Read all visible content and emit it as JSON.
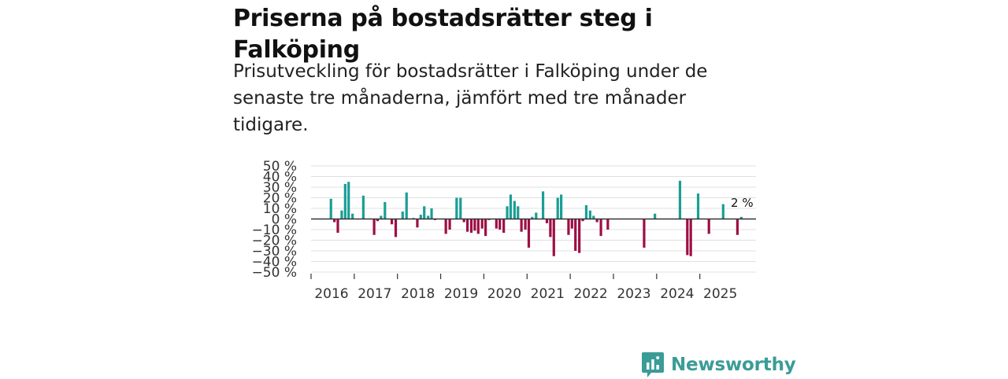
{
  "title": "Priserna på bostadsrätter steg i Falköping",
  "subtitle": "Prisutveckling för bostadsrätter i Falköping under de senaste tre månaderna, jämfört med tre månader tidigare.",
  "brand": {
    "name": "Newsworthy",
    "color": "#3a9c96"
  },
  "colors": {
    "positive": "#1a9e96",
    "negative": "#9e0e45",
    "grid": "#e0e0e0",
    "zero_line": "#333333"
  },
  "chart_data": {
    "type": "bar",
    "title": "Priserna på bostadsrätter steg i Falköping",
    "xlabel": "",
    "ylabel": "",
    "ylim": [
      -50,
      50
    ],
    "y_ticks": [
      50,
      40,
      30,
      20,
      10,
      0,
      -10,
      -20,
      -30,
      -40,
      -50
    ],
    "y_tick_labels": [
      "50 %",
      "40 %",
      "30 %",
      "20 %",
      "10 %",
      "0 %",
      "−10 %",
      "−20 %",
      "−30 %",
      "−40 %",
      "−50 %"
    ],
    "x_range": [
      2016.0,
      2026.3
    ],
    "x_ticks": [
      2016,
      2017,
      2018,
      2019,
      2020,
      2021,
      2022,
      2023,
      2024,
      2025
    ],
    "x_tick_labels": [
      "2016",
      "2017",
      "2018",
      "2019",
      "2020",
      "2021",
      "2022",
      "2023",
      "2024",
      "2025"
    ],
    "x": [
      2016.46,
      2016.54,
      2016.62,
      2016.71,
      2016.79,
      2016.87,
      2016.96,
      2017.21,
      2017.46,
      2017.54,
      2017.62,
      2017.71,
      2017.87,
      2017.96,
      2018.12,
      2018.21,
      2018.37,
      2018.46,
      2018.54,
      2018.62,
      2018.71,
      2018.79,
      2018.87,
      2019.12,
      2019.21,
      2019.37,
      2019.46,
      2019.54,
      2019.62,
      2019.71,
      2019.79,
      2019.87,
      2019.96,
      2020.04,
      2020.12,
      2020.29,
      2020.37,
      2020.46,
      2020.54,
      2020.62,
      2020.71,
      2020.79,
      2020.87,
      2020.96,
      2021.04,
      2021.12,
      2021.21,
      2021.37,
      2021.46,
      2021.54,
      2021.62,
      2021.71,
      2021.79,
      2021.96,
      2022.04,
      2022.12,
      2022.21,
      2022.29,
      2022.37,
      2022.46,
      2022.54,
      2022.62,
      2022.71,
      2022.87,
      2023.71,
      2023.96,
      2024.54,
      2024.71,
      2024.79,
      2024.96,
      2025.21,
      2025.54,
      2025.87,
      2025.96
    ],
    "values": [
      19,
      -3,
      -13,
      8,
      33,
      35,
      5,
      22,
      -15,
      -2,
      3,
      16,
      -5,
      -17,
      7,
      25,
      1,
      -8,
      4,
      12,
      3,
      10,
      -1,
      -14,
      -10,
      20,
      20,
      -3,
      -12,
      -13,
      -11,
      -14,
      -9,
      -16,
      -1,
      -9,
      -10,
      -13,
      12,
      23,
      17,
      12,
      -12,
      -10,
      -27,
      2,
      6,
      26,
      -4,
      -17,
      -35,
      20,
      23,
      -15,
      -9,
      -30,
      -32,
      -2,
      13,
      8,
      3,
      -3,
      -16,
      -10,
      -27,
      5,
      36,
      -34,
      -35,
      24,
      -14,
      14,
      -15,
      2
    ],
    "annotation": {
      "label": "2 %",
      "x": 2025.96,
      "value": 2
    }
  }
}
